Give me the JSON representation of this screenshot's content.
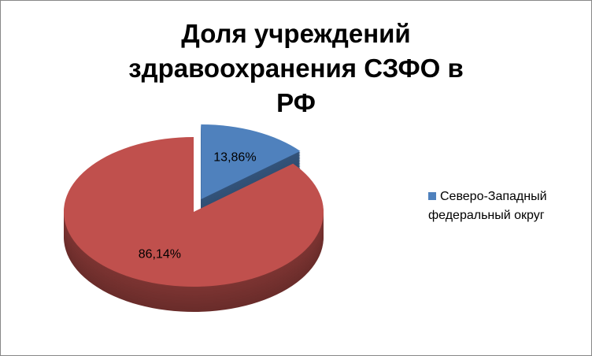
{
  "chart_data": {
    "type": "pie3d",
    "title": "Доля учреждений здравоохранения СЗФО в РФ",
    "categories": [
      "Северо-Западный федеральный округ",
      null
    ],
    "values": [
      13.86,
      86.14
    ],
    "value_labels": [
      "13,86%",
      "86,14%"
    ],
    "colors": [
      "#4f81bd",
      "#c0504d"
    ],
    "legend": "right"
  }
}
